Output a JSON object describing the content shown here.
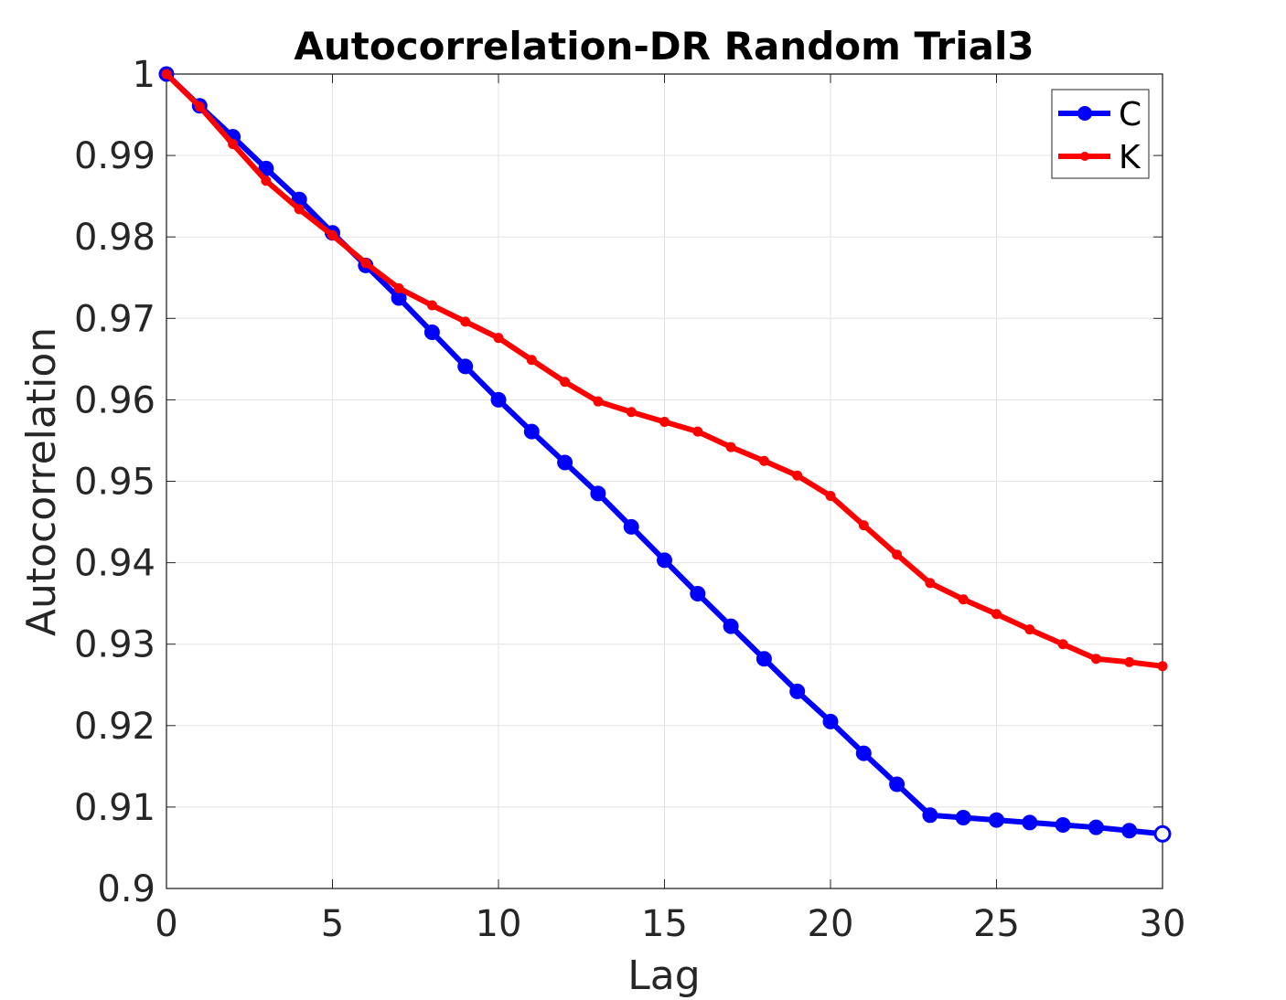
{
  "chart_data": {
    "type": "line",
    "title": "Autocorrelation-DR Random Trial3",
    "xlabel": "Lag",
    "ylabel": "Autocorrelation",
    "xlim": [
      0,
      30
    ],
    "ylim": [
      0.9,
      1.0
    ],
    "xticks": [
      0,
      5,
      10,
      15,
      20,
      25,
      30
    ],
    "xtick_labels": [
      "0",
      "5",
      "10",
      "15",
      "20",
      "25",
      "30"
    ],
    "yticks": [
      0.9,
      0.91,
      0.92,
      0.93,
      0.94,
      0.95,
      0.96,
      0.97,
      0.98,
      0.99,
      1.0
    ],
    "ytick_labels": [
      "0.9",
      "0.91",
      "0.92",
      "0.93",
      "0.94",
      "0.95",
      "0.96",
      "0.97",
      "0.98",
      "0.99",
      "1"
    ],
    "grid": true,
    "legend_position": "top-right",
    "x": [
      0,
      1,
      2,
      3,
      4,
      5,
      6,
      7,
      8,
      9,
      10,
      11,
      12,
      13,
      14,
      15,
      16,
      17,
      18,
      19,
      20,
      21,
      22,
      23,
      24,
      25,
      26,
      27,
      28,
      29,
      30
    ],
    "series": [
      {
        "name": "C",
        "color": "#0000ff",
        "marker": "circle",
        "values": [
          1.0,
          0.9961,
          0.9923,
          0.9884,
          0.9846,
          0.9805,
          0.9765,
          0.9725,
          0.9683,
          0.9641,
          0.96,
          0.9561,
          0.9523,
          0.9485,
          0.9444,
          0.9403,
          0.9362,
          0.9322,
          0.9282,
          0.9242,
          0.9205,
          0.9166,
          0.9128,
          0.909,
          0.9087,
          0.9084,
          0.9081,
          0.9078,
          0.9075,
          0.9071,
          0.9067
        ]
      },
      {
        "name": "K",
        "color": "#ff0000",
        "marker": "dot",
        "values": [
          1.0,
          0.996,
          0.9914,
          0.9869,
          0.9834,
          0.9802,
          0.9768,
          0.9737,
          0.9716,
          0.9696,
          0.9676,
          0.9649,
          0.9622,
          0.9598,
          0.9585,
          0.9573,
          0.9561,
          0.9542,
          0.9525,
          0.9507,
          0.9482,
          0.9446,
          0.941,
          0.9375,
          0.9355,
          0.9337,
          0.9318,
          0.93,
          0.9282,
          0.9278,
          0.9273
        ]
      }
    ]
  }
}
